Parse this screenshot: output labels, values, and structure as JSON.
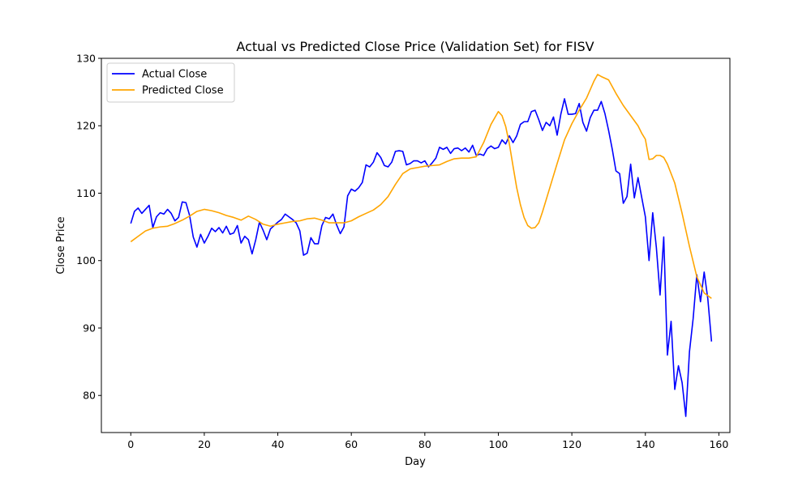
{
  "chart_data": {
    "type": "line",
    "title": "Actual vs Predicted Close Price (Validation Set) for FISV",
    "xlabel": "Day",
    "ylabel": "Close Price",
    "xlim": [
      -8,
      163
    ],
    "ylim": [
      74.5,
      130
    ],
    "xticks": [
      0,
      20,
      40,
      60,
      80,
      100,
      120,
      140,
      160
    ],
    "yticks": [
      80,
      90,
      100,
      110,
      120,
      130
    ],
    "grid": false,
    "legend_position": "upper-left",
    "series": [
      {
        "name": "Actual Close",
        "color": "#0000ff",
        "x": [
          0,
          1,
          2,
          3,
          4,
          5,
          6,
          7,
          8,
          9,
          10,
          11,
          12,
          13,
          14,
          15,
          16,
          17,
          18,
          19,
          20,
          21,
          22,
          23,
          24,
          25,
          26,
          27,
          28,
          29,
          30,
          31,
          32,
          33,
          34,
          35,
          36,
          37,
          38,
          39,
          40,
          41,
          42,
          43,
          44,
          45,
          46,
          47,
          48,
          49,
          50,
          51,
          52,
          53,
          54,
          55,
          56,
          57,
          58,
          59,
          60,
          61,
          62,
          63,
          64,
          65,
          66,
          67,
          68,
          69,
          70,
          71,
          72,
          73,
          74,
          75,
          76,
          77,
          78,
          79,
          80,
          81,
          82,
          83,
          84,
          85,
          86,
          87,
          88,
          89,
          90,
          91,
          92,
          93,
          94,
          95,
          96,
          97,
          98,
          99,
          100,
          101,
          102,
          103,
          104,
          105,
          106,
          107,
          108,
          109,
          110,
          111,
          112,
          113,
          114,
          115,
          116,
          117,
          118,
          119,
          120,
          121,
          122,
          123,
          124,
          125,
          126,
          127,
          128,
          129,
          130,
          131,
          132,
          133,
          134,
          135,
          136,
          137,
          138,
          139,
          140,
          141,
          142,
          143,
          144,
          145,
          146,
          147,
          148,
          149,
          150,
          151,
          152,
          153,
          154,
          155,
          156,
          157,
          158
        ],
        "values": [
          105.5,
          107.3,
          107.8,
          107.0,
          107.6,
          108.2,
          104.9,
          106.5,
          107.1,
          106.9,
          107.6,
          107.0,
          105.9,
          106.4,
          108.7,
          108.6,
          106.7,
          103.5,
          102.0,
          103.9,
          102.6,
          103.6,
          104.8,
          104.3,
          104.9,
          104.1,
          105.1,
          103.9,
          104.1,
          105.2,
          102.6,
          103.6,
          103.1,
          101.0,
          103.1,
          105.7,
          104.5,
          103.1,
          104.7,
          105.2,
          105.7,
          106.1,
          106.9,
          106.5,
          106.1,
          105.6,
          104.4,
          100.8,
          101.1,
          103.4,
          102.5,
          102.5,
          105.2,
          106.4,
          106.2,
          106.9,
          105.3,
          104.0,
          105.0,
          109.6,
          110.6,
          110.3,
          110.8,
          111.6,
          114.2,
          113.9,
          114.6,
          116.0,
          115.3,
          114.1,
          113.9,
          114.6,
          116.2,
          116.3,
          116.2,
          114.2,
          114.4,
          114.8,
          114.8,
          114.5,
          114.8,
          113.9,
          114.5,
          115.2,
          116.8,
          116.5,
          116.8,
          115.9,
          116.6,
          116.7,
          116.3,
          116.7,
          116.1,
          117.1,
          115.6,
          115.8,
          115.6,
          116.6,
          117.0,
          116.6,
          116.8,
          117.9,
          117.3,
          118.5,
          117.5,
          118.5,
          120.2,
          120.6,
          120.6,
          122.1,
          122.3,
          120.9,
          119.3,
          120.5,
          120.0,
          121.3,
          118.6,
          121.7,
          124.0,
          121.7,
          121.7,
          121.8,
          123.3,
          120.5,
          119.2,
          121.2,
          122.3,
          122.3,
          123.6,
          121.8,
          119.3,
          116.5,
          113.3,
          112.9,
          108.5,
          109.5,
          114.3,
          109.3,
          112.3,
          109.4,
          106.5,
          100.0,
          107.1,
          101.9,
          94.9,
          103.5,
          86.0,
          91.0,
          80.9,
          84.4,
          81.9,
          76.9,
          86.5,
          91.4,
          97.9,
          93.9,
          98.3,
          94.3,
          88.0
        ]
      },
      {
        "name": "Predicted Close",
        "color": "#ffa500",
        "x": [
          0,
          2,
          4,
          6,
          8,
          10,
          12,
          14,
          16,
          18,
          20,
          22,
          24,
          26,
          28,
          30,
          32,
          34,
          36,
          38,
          40,
          42,
          44,
          46,
          48,
          50,
          52,
          54,
          56,
          58,
          60,
          62,
          64,
          66,
          68,
          70,
          72,
          74,
          76,
          78,
          80,
          82,
          84,
          86,
          88,
          90,
          92,
          94,
          96,
          98,
          100,
          101,
          102,
          103,
          104,
          105,
          106,
          107,
          108,
          109,
          110,
          111,
          112,
          114,
          116,
          118,
          120,
          122,
          124,
          126,
          127,
          128,
          130,
          132,
          134,
          136,
          138,
          139,
          140,
          141,
          142,
          143,
          144,
          145,
          146,
          148,
          150,
          152,
          154,
          156,
          158
        ],
        "values": [
          102.8,
          103.6,
          104.4,
          104.8,
          105.0,
          105.1,
          105.5,
          106.0,
          106.6,
          107.3,
          107.6,
          107.4,
          107.1,
          106.7,
          106.4,
          106.0,
          106.6,
          106.1,
          105.4,
          105.1,
          105.4,
          105.6,
          105.8,
          105.9,
          106.2,
          106.3,
          106.0,
          105.6,
          105.6,
          105.6,
          105.9,
          106.5,
          107.0,
          107.5,
          108.3,
          109.5,
          111.3,
          112.9,
          113.6,
          113.8,
          114.0,
          114.1,
          114.2,
          114.7,
          115.1,
          115.2,
          115.2,
          115.4,
          117.5,
          120.2,
          122.1,
          121.5,
          119.9,
          117.3,
          114.0,
          110.8,
          108.3,
          106.4,
          105.2,
          104.8,
          104.9,
          105.6,
          107.2,
          110.8,
          114.4,
          117.9,
          120.3,
          122.3,
          124.1,
          126.6,
          127.6,
          127.3,
          126.8,
          124.8,
          123.0,
          121.5,
          120.0,
          118.9,
          118.0,
          115.0,
          115.1,
          115.6,
          115.6,
          115.3,
          114.3,
          111.5,
          107.0,
          102.1,
          97.6,
          95.2,
          94.4
        ]
      }
    ]
  }
}
